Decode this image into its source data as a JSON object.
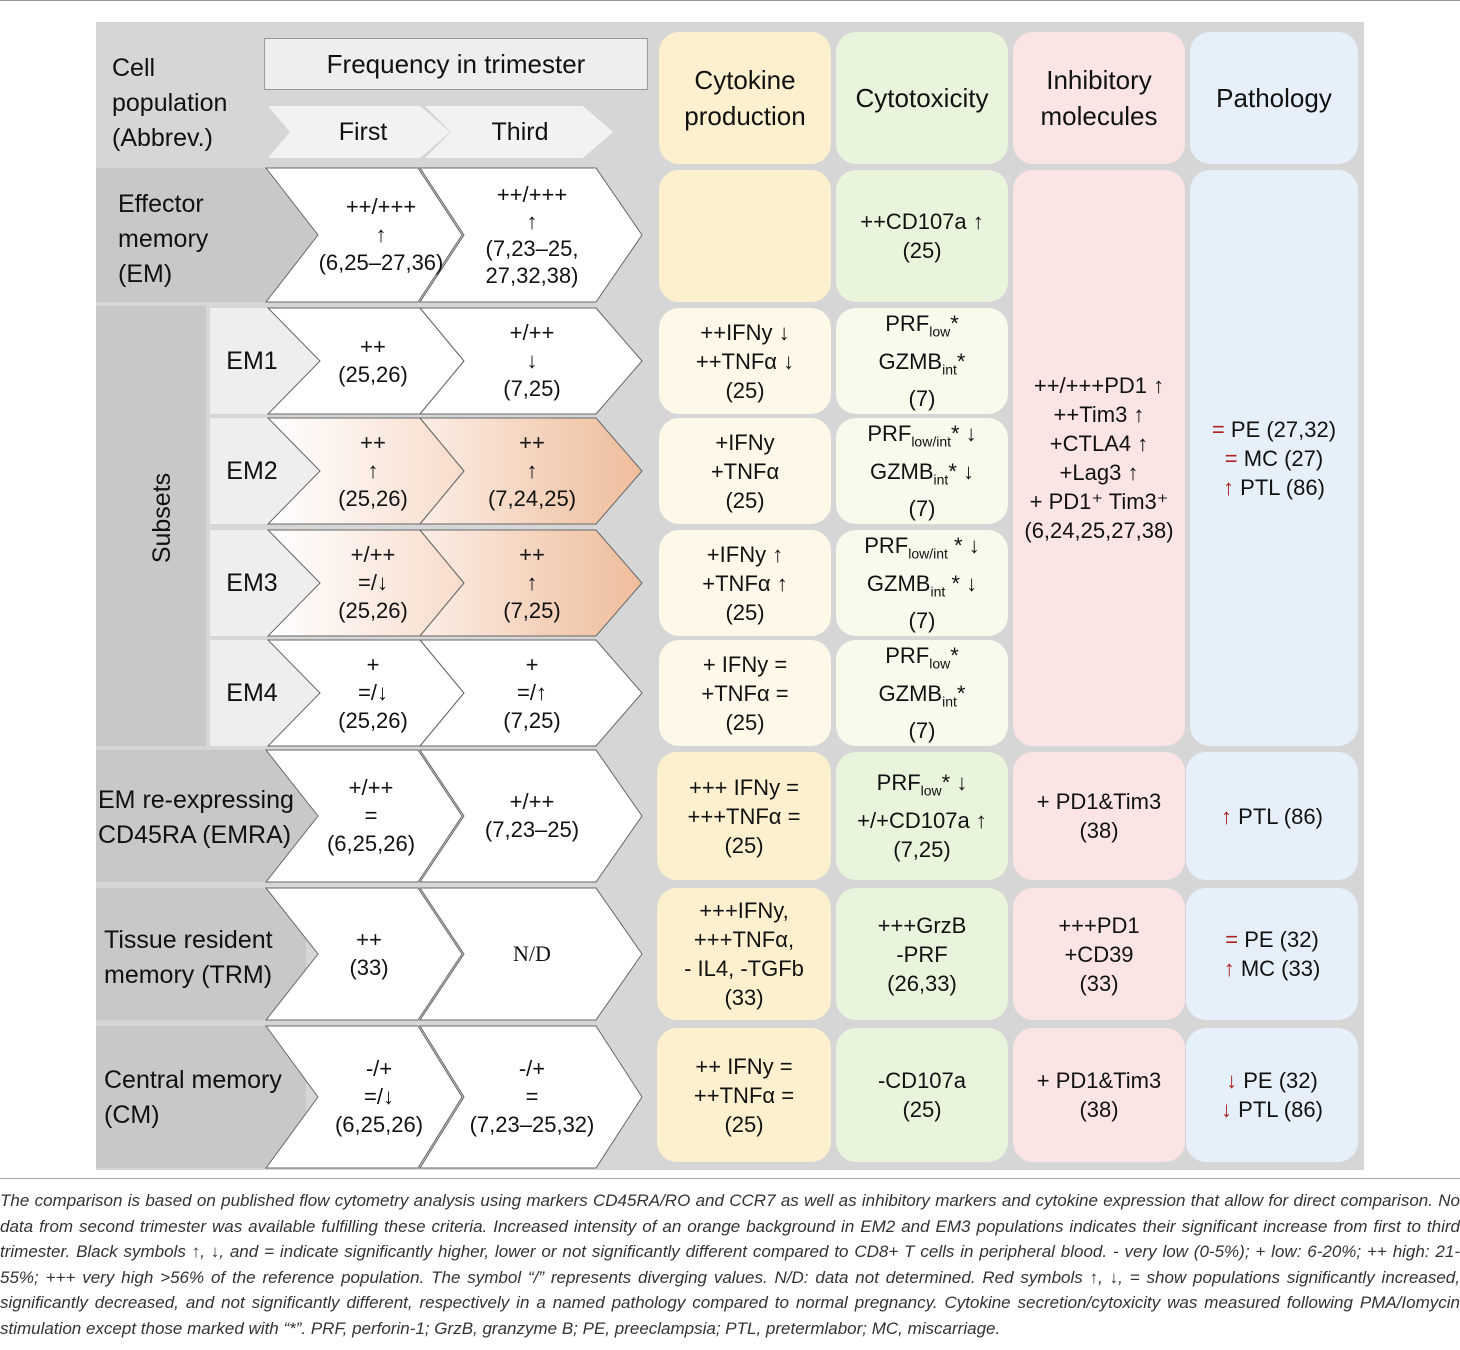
{
  "headers": {
    "cell_population": [
      "Cell",
      "population",
      "(Abbrev.)"
    ],
    "frequency": "Frequency in trimester",
    "first": "First",
    "third": "Third",
    "cytokine": [
      "Cytokine",
      "production"
    ],
    "cytotoxicity": "Cytotoxicity",
    "inhibitory": [
      "Inhibitory",
      "molecules"
    ],
    "pathology": "Pathology"
  },
  "rows": {
    "em": {
      "label": [
        "Effector",
        "memory",
        "(EM)"
      ],
      "first": [
        "++/+++",
        "↑",
        "(6,25–27,36)"
      ],
      "third": [
        "++/+++",
        "↑",
        "(7,23–25,",
        "27,32,38)"
      ],
      "cytotox": [
        "++CD107a ↑",
        "(25)"
      ]
    },
    "subsets_label": "Subsets",
    "em1": {
      "label": "EM1",
      "first": [
        "++",
        "(25,26)"
      ],
      "third": [
        "+/++",
        "↓",
        "(7,25)"
      ],
      "cytokine": [
        "++IFNy ↓",
        "++TNFα  ↓",
        "(25)"
      ],
      "cytotox": {
        "prf": "PRF",
        "prf_sub": "low",
        "prf_tail": "*",
        "gz": "GZMB",
        "gz_sub": "int",
        "gz_tail": "*",
        "ref": "(7)"
      }
    },
    "em2": {
      "label": "EM2",
      "first": [
        "++",
        "↑",
        "(25,26)"
      ],
      "third": [
        "++",
        "↑",
        "(7,24,25)"
      ],
      "cytokine": [
        "+IFNy",
        "+TNFα",
        "(25)"
      ],
      "cytotox": {
        "prf": "PRF",
        "prf_sub": "low/int",
        "prf_tail": "* ↓",
        "gz": "GZMB",
        "gz_sub": "int",
        "gz_tail": "* ↓",
        "ref": "(7)"
      }
    },
    "em3": {
      "label": "EM3",
      "first": [
        "+/++",
        "=/↓",
        "(25,26)"
      ],
      "third": [
        "++",
        "↑",
        "(7,25)"
      ],
      "cytokine": [
        "+IFNy ↑",
        "+TNFα ↑",
        "(25)"
      ],
      "cytotox": {
        "prf": "PRF",
        "prf_sub": "low/int",
        "prf_tail": " * ↓",
        "gz": "GZMB",
        "gz_sub": "int",
        "gz_tail": " * ↓",
        "ref": "(7)"
      }
    },
    "em4": {
      "label": "EM4",
      "first": [
        "+",
        "=/↓",
        "(25,26)"
      ],
      "third": [
        "+",
        "=/↑",
        "(7,25)"
      ],
      "cytokine": [
        "+ IFNy =",
        "+TNFα =",
        "(25)"
      ],
      "cytotox": {
        "prf": "PRF",
        "prf_sub": "low",
        "prf_tail": "*",
        "gz": "GZMB",
        "gz_sub": "int",
        "gz_tail": "*",
        "ref": "(7)"
      }
    },
    "em_inhibitory": [
      "++/+++PD1 ↑",
      "++Tim3 ↑",
      "+CTLA4 ↑",
      "+Lag3 ↑",
      "+ PD1⁺ Tim3⁺",
      "(6,24,25,27,38)"
    ],
    "em_pathology": [
      {
        "sym": "=",
        "text": " PE (27,32)"
      },
      {
        "sym": "=",
        "text": " MC (27)"
      },
      {
        "sym": "↑",
        "text": " PTL (86)"
      }
    ],
    "emra": {
      "label": [
        "EM re-expressing",
        "CD45RA (EMRA)"
      ],
      "first": [
        "+/++",
        "=",
        "(6,25,26)"
      ],
      "third": [
        "+/++",
        "(7,23–25)"
      ],
      "cytokine": [
        "+++ IFNy =",
        "+++TNFα =",
        "(25)"
      ],
      "cytotox": {
        "prf": "PRF",
        "prf_sub": "low",
        "prf_tail": "* ↓",
        "line2": "+/+CD107a ↑",
        "ref": "(7,25)"
      },
      "inhibitory": [
        "+ PD1&Tim3",
        "(38)"
      ],
      "pathology": [
        {
          "sym": "↑",
          "text": " PTL (86)"
        }
      ]
    },
    "trm": {
      "label": [
        "Tissue resident",
        "memory (TRM)"
      ],
      "first": [
        "++",
        "(33)"
      ],
      "third": [
        "N/D"
      ],
      "cytokine": [
        "+++IFNy,",
        "+++TNFα,",
        "- IL4, -TGFb",
        "(33)"
      ],
      "cytotox": [
        "+++GrzB",
        "-PRF",
        "(26,33)"
      ],
      "inhibitory": [
        "+++PD1",
        "+CD39",
        "(33)"
      ],
      "pathology": [
        {
          "sym": "=",
          "text": " PE (32)"
        },
        {
          "sym": "↑",
          "text": " MC (33)"
        }
      ]
    },
    "cm": {
      "label": [
        "Central memory",
        "(CM)"
      ],
      "first": [
        "-/+",
        "=/↓",
        "(6,25,26)"
      ],
      "third": [
        "-/+",
        "=",
        "(7,23–25,32)"
      ],
      "cytokine": [
        "++ IFNy =",
        "++TNFα =",
        "(25)"
      ],
      "cytotox": [
        "-CD107a",
        "(25)"
      ],
      "inhibitory": [
        "+ PD1&Tim3",
        "(38)"
      ],
      "pathology": [
        {
          "sym": "↓",
          "text": " PE (32)"
        },
        {
          "sym": "↓",
          "text": " PTL (86)"
        }
      ]
    }
  },
  "caption": "The comparison is based on published flow cytometry analysis using markers CD45RA/RO and CCR7 as well as inhibitory markers and cytokine expression that allow for direct comparison. No data from second trimester was available fulfilling these criteria. Increased intensity of an orange background in EM2 and EM3 populations indicates their significant increase from first to third trimester. Black symbols ↑, ↓, and = indicate significantly higher, lower or not significantly different compared to CD8+ T cells in peripheral blood. - very low (0-5%); + low: 6-20%; ++ high: 21-55%; +++ very high >56% of the reference population. The symbol “/” represents diverging values. N/D: data not determined. Red symbols ↑, ↓, = show populations significantly increased, significantly decreased, and not significantly different, respectively in a named pathology compared to normal pregnancy. Cytokine secretion/cytoxicity was measured following PMA/Iomycin stimulation except those marked with “*”. PRF, perforin-1; GrzB, granzyme B; PE, preeclampsia; PTL, pretermlabor; MC, miscarriage.",
  "colors": {
    "panel": "#d6d6d6",
    "cytokine": "#fdf0cf",
    "cytotoxicity": "#e8f5dc",
    "inhibitory": "#fbe4e4",
    "pathology": "#e6f0fb",
    "orange_gradient": "#f2c4a4",
    "red_symbol": "#b02020"
  }
}
